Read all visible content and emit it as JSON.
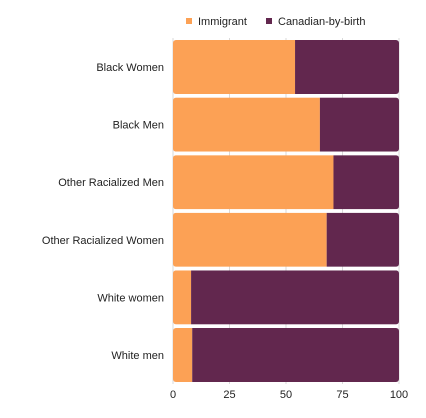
{
  "chart_data": {
    "type": "bar",
    "orientation": "horizontal",
    "stacked": true,
    "categories": [
      "Black Women",
      "Black Men",
      "Other Racialized Men",
      "Other Racialized Women",
      "White women",
      "White men"
    ],
    "series": [
      {
        "name": "Immigrant",
        "color": "#FCA155",
        "values": [
          54,
          65,
          71,
          68,
          8,
          8.5
        ]
      },
      {
        "name": "Canadian-by-birth",
        "color": "#62274E",
        "values": [
          46,
          35,
          29,
          32,
          92,
          91.5
        ]
      }
    ],
    "xlim": [
      0,
      100
    ],
    "xticks": [
      0,
      25,
      50,
      75,
      100
    ],
    "grid": true,
    "legend_position": "top"
  }
}
